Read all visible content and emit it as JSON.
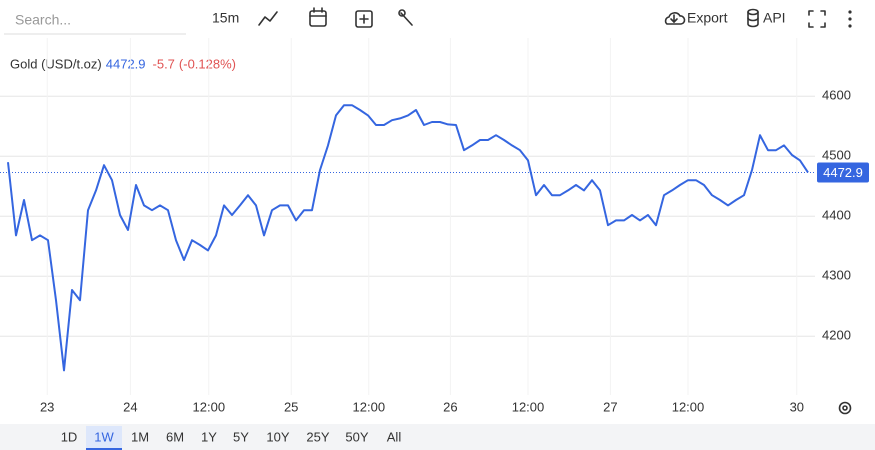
{
  "toolbar": {
    "search_placeholder": "Search...",
    "interval": "15m",
    "export": "Export",
    "api": "API"
  },
  "chart_data": {
    "type": "line",
    "series": [
      {
        "name": "Gold (USD/t.oz)",
        "color": "#3566e0",
        "values": [
          4490,
          4368,
          4427,
          4360,
          4368,
          4360,
          4260,
          4143,
          4277,
          4260,
          4410,
          4443,
          4485,
          4460,
          4402,
          4377,
          4452,
          4418,
          4410,
          4418,
          4410,
          4360,
          4327,
          4360,
          4352,
          4343,
          4368,
          4418,
          4402,
          4418,
          4435,
          4418,
          4368,
          4410,
          4418,
          4418,
          4393,
          4410,
          4410,
          4477,
          4518,
          4568,
          4585,
          4585,
          4577,
          4568,
          4552,
          4552,
          4560,
          4563,
          4568,
          4577,
          4552,
          4557,
          4557,
          4553,
          4552,
          4510,
          4518,
          4527,
          4527,
          4535,
          4527,
          4518,
          4510,
          4493,
          4435,
          4452,
          4435,
          4435,
          4443,
          4452,
          4443,
          4460,
          4443,
          4385,
          4393,
          4393,
          4402,
          4393,
          4402,
          4385,
          4435,
          4443,
          4452,
          4460,
          4460,
          4452,
          4435,
          4427,
          4418,
          4427,
          4435,
          4477,
          4535,
          4510,
          4510,
          4518,
          4502,
          4493,
          4472.9
        ]
      }
    ],
    "last_price": 4472.9,
    "change": "-5.7",
    "change_pct": "(-0.128%)",
    "change_color": "#e05252",
    "xlim": [
      0,
      100
    ],
    "xticks": [
      {
        "value": 4.9,
        "label": "23"
      },
      {
        "value": 15.3,
        "label": "24"
      },
      {
        "value": 25.1,
        "label": "12:00"
      },
      {
        "value": 35.4,
        "label": "25"
      },
      {
        "value": 45.1,
        "label": "12:00"
      },
      {
        "value": 55.3,
        "label": "26"
      },
      {
        "value": 65,
        "label": "12:00"
      },
      {
        "value": 75.3,
        "label": "27"
      },
      {
        "value": 85,
        "label": "12:00"
      },
      {
        "value": 98.6,
        "label": "30"
      }
    ],
    "ylim": [
      4102,
      4697
    ],
    "yticks": [
      4200,
      4300,
      4400,
      4500,
      4600
    ],
    "grid": true
  },
  "range_buttons": [
    "1D",
    "1W",
    "1M",
    "6M",
    "1Y",
    "5Y",
    "10Y",
    "25Y",
    "50Y",
    "All"
  ],
  "active_range": "1W"
}
